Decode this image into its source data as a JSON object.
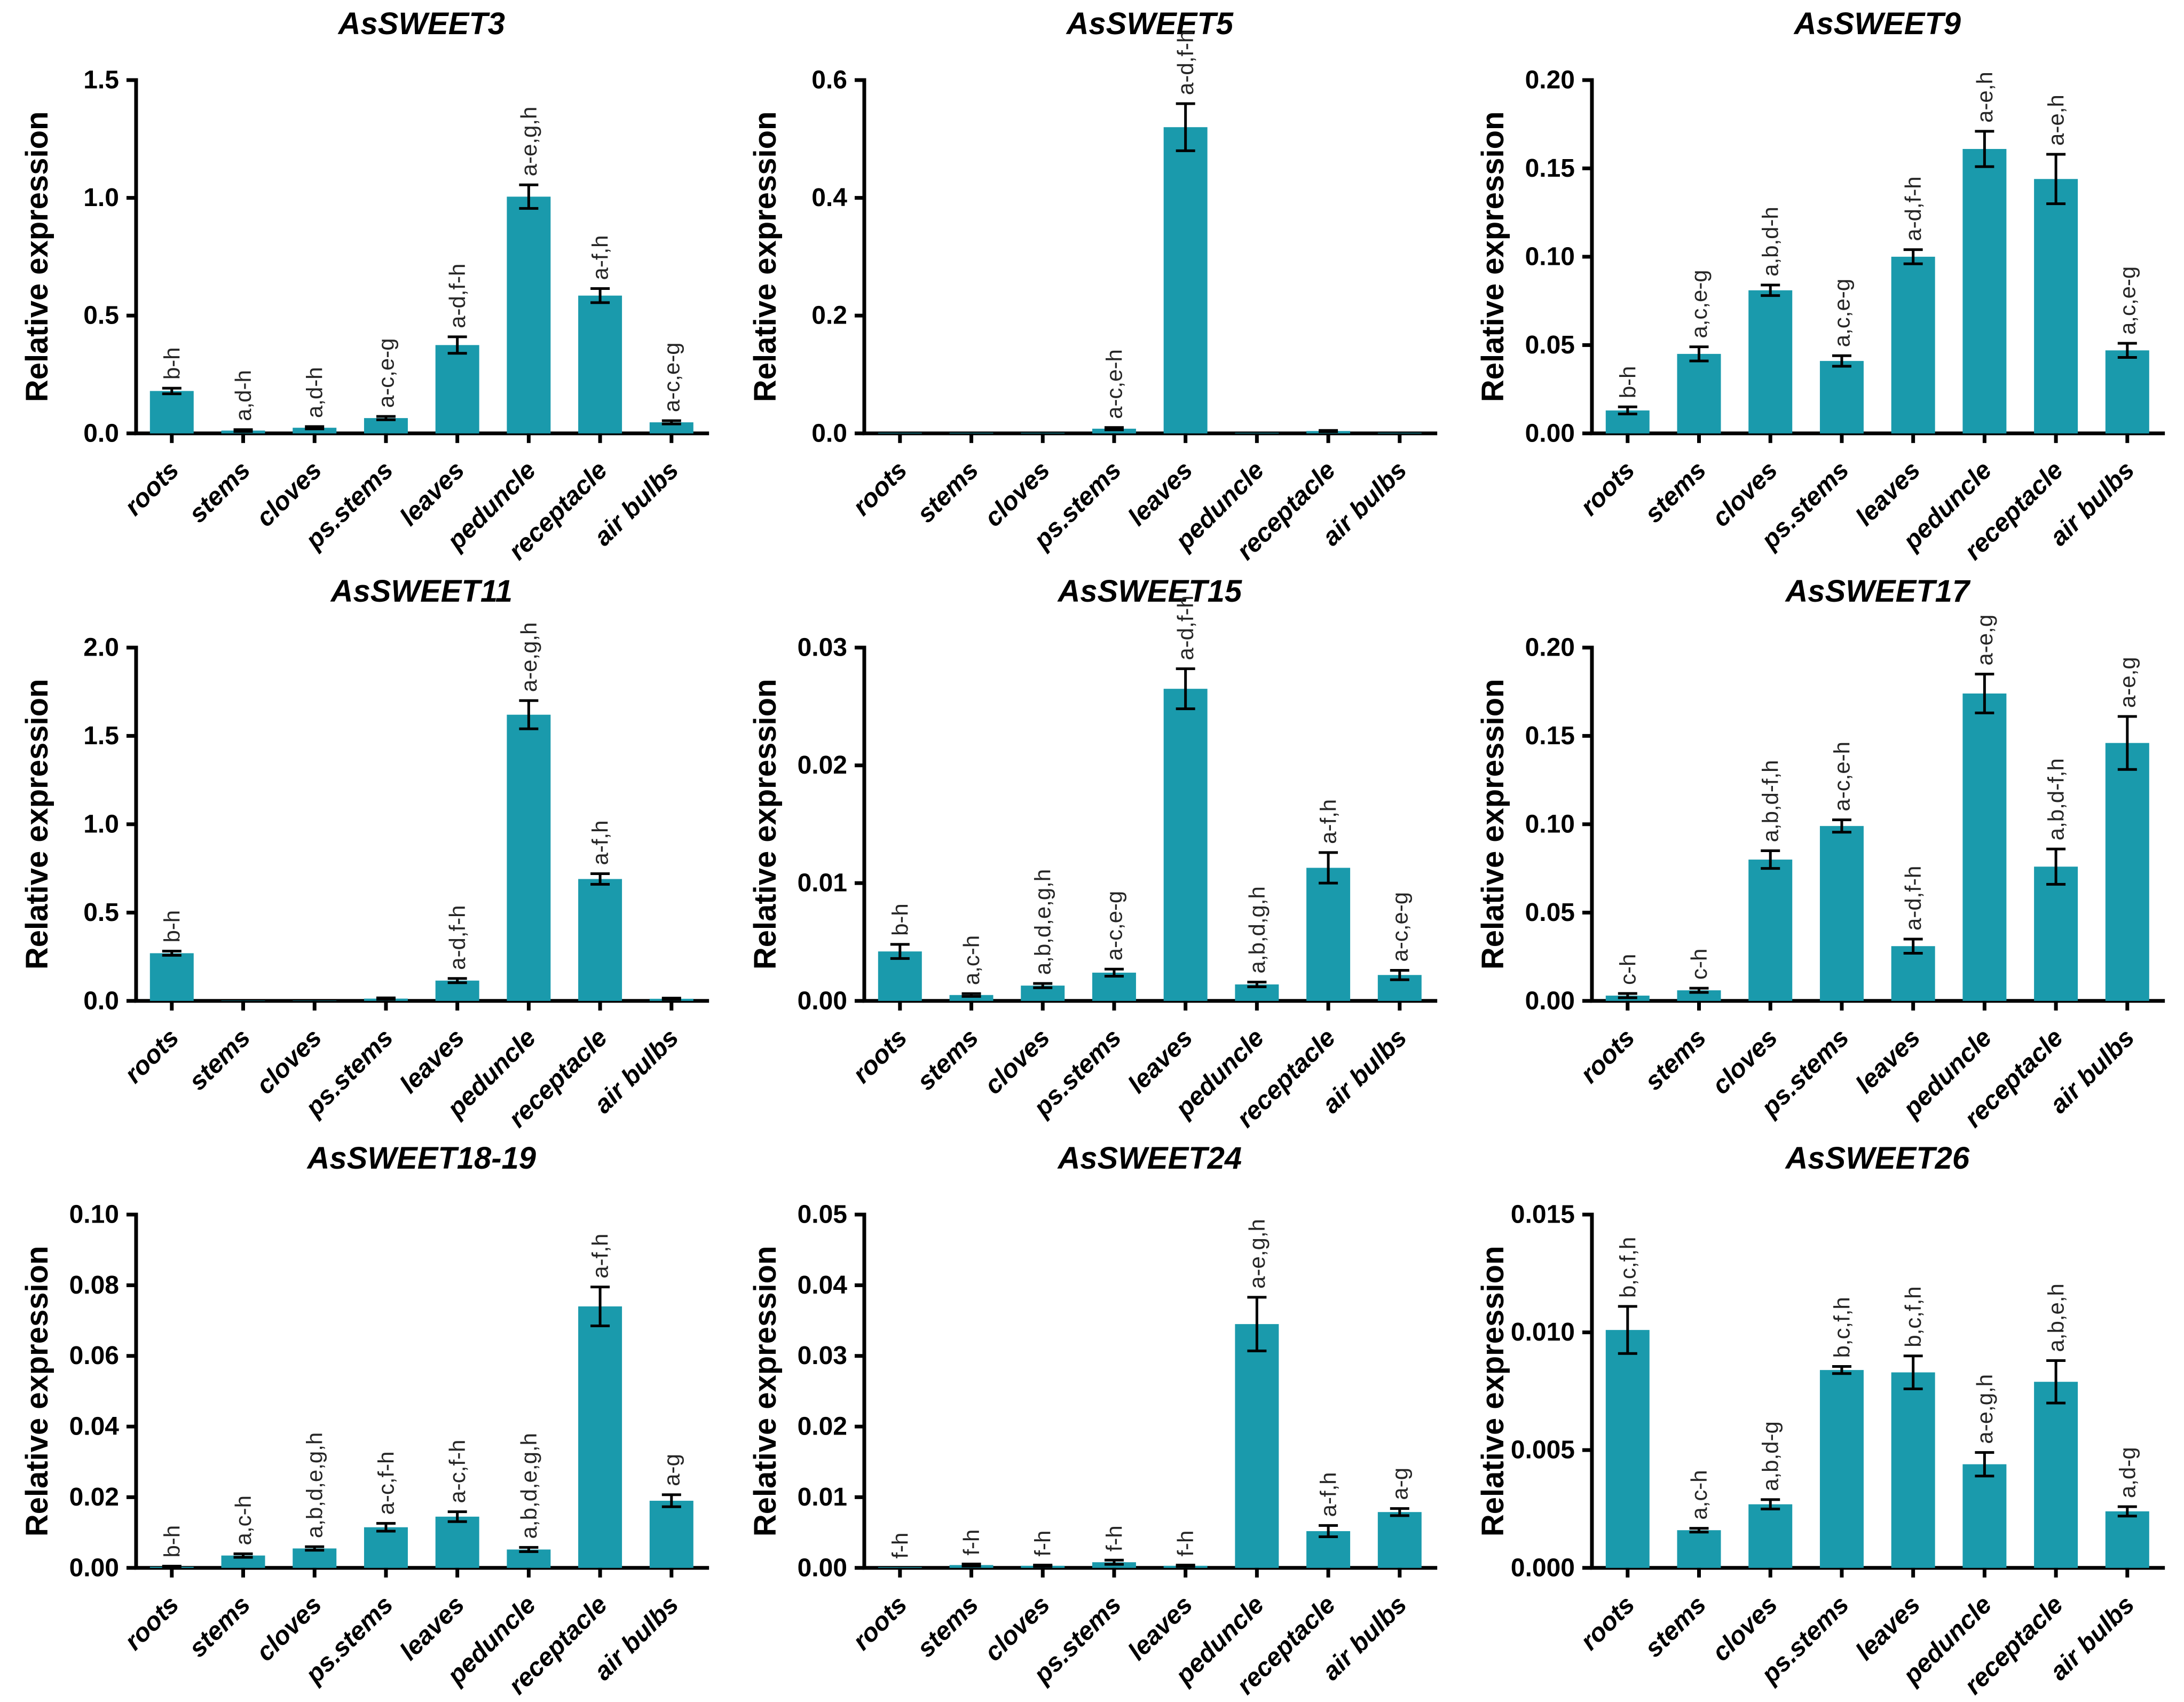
{
  "figure": {
    "bar_color": "#1a9aac",
    "axis_color": "#000000",
    "title_color": "#000000",
    "tick_label_color": "#000000",
    "sig_label_color": "#262626",
    "ylabel": "Relative expression"
  },
  "chart_data": [
    {
      "type": "bar",
      "title": "AsSWEET3",
      "ylabel": "Relative expression",
      "categories": [
        "roots",
        "stems",
        "cloves",
        "ps.stems",
        "leaves",
        "peduncle",
        "receptacle",
        "air bulbs"
      ],
      "values": [
        0.18,
        0.012,
        0.024,
        0.065,
        0.375,
        1.005,
        0.585,
        0.047
      ],
      "errors": [
        0.012,
        0.004,
        0.005,
        0.007,
        0.035,
        0.05,
        0.03,
        0.007
      ],
      "sig_labels": [
        "b-h",
        "a,d-h",
        "a,d-h",
        "a-c,e-g",
        "a-d,f-h",
        "a-e,g,h",
        "a-f,h",
        "a-c,e-g"
      ],
      "ylim": [
        0,
        1.5
      ],
      "yticks": [
        0,
        0.5,
        1.0,
        1.5
      ],
      "ytick_labels": [
        "0.0",
        "0.5",
        "1.0",
        "1.5"
      ],
      "grid": false,
      "legend": false
    },
    {
      "type": "bar",
      "title": "AsSWEET5",
      "ylabel": "Relative expression",
      "categories": [
        "roots",
        "stems",
        "cloves",
        "ps.stems",
        "leaves",
        "peduncle",
        "receptacle",
        "air bulbs"
      ],
      "values": [
        0.001,
        0.001,
        0.001,
        0.008,
        0.52,
        0.001,
        0.004,
        0.001
      ],
      "errors": [
        0,
        0,
        0,
        0.002,
        0.04,
        0,
        0.001,
        0
      ],
      "sig_labels": [
        "",
        "",
        "",
        "a-c,e-h",
        "a-d,f-h",
        "",
        "",
        ""
      ],
      "ylim": [
        0,
        0.6
      ],
      "yticks": [
        0,
        0.2,
        0.4,
        0.6
      ],
      "ytick_labels": [
        "0.0",
        "0.2",
        "0.4",
        "0.6"
      ],
      "grid": false,
      "legend": false
    },
    {
      "type": "bar",
      "title": "AsSWEET9",
      "ylabel": "Relative expression",
      "categories": [
        "roots",
        "stems",
        "cloves",
        "ps.stems",
        "leaves",
        "peduncle",
        "receptacle",
        "air bulbs"
      ],
      "values": [
        0.013,
        0.045,
        0.081,
        0.041,
        0.1,
        0.161,
        0.144,
        0.047
      ],
      "errors": [
        0.002,
        0.004,
        0.003,
        0.003,
        0.004,
        0.01,
        0.014,
        0.004
      ],
      "sig_labels": [
        "b-h",
        "a,c,e-g",
        "a,b,d-h",
        "a,c,e-g",
        "a-d,f-h",
        "a-e,h",
        "a-e,h",
        "a,c,e-g"
      ],
      "ylim": [
        0,
        0.2
      ],
      "yticks": [
        0,
        0.05,
        0.1,
        0.15,
        0.2
      ],
      "ytick_labels": [
        "0.00",
        "0.05",
        "0.10",
        "0.15",
        "0.20"
      ],
      "grid": false,
      "legend": false
    },
    {
      "type": "bar",
      "title": "AsSWEET11",
      "ylabel": "Relative expression",
      "categories": [
        "roots",
        "stems",
        "cloves",
        "ps.stems",
        "leaves",
        "peduncle",
        "receptacle",
        "air bulbs"
      ],
      "values": [
        0.27,
        0.002,
        0.002,
        0.013,
        0.115,
        1.62,
        0.69,
        0.012
      ],
      "errors": [
        0.012,
        0,
        0,
        0.004,
        0.012,
        0.08,
        0.03,
        0.004
      ],
      "sig_labels": [
        "b-h",
        "",
        "",
        "",
        "a-d,f-h",
        "a-e,g,h",
        "a-f,h",
        ""
      ],
      "ylim": [
        0,
        2.0
      ],
      "yticks": [
        0,
        0.5,
        1.0,
        1.5,
        2.0
      ],
      "ytick_labels": [
        "0.0",
        "0.5",
        "1.0",
        "1.5",
        "2.0"
      ],
      "grid": false,
      "legend": false
    },
    {
      "type": "bar",
      "title": "AsSWEET15",
      "ylabel": "Relative expression",
      "categories": [
        "roots",
        "stems",
        "cloves",
        "ps.stems",
        "leaves",
        "peduncle",
        "receptacle",
        "air bulbs"
      ],
      "values": [
        0.0042,
        0.0005,
        0.0013,
        0.0024,
        0.0265,
        0.0014,
        0.0113,
        0.0022
      ],
      "errors": [
        0.0006,
        0.00012,
        0.00018,
        0.0003,
        0.0017,
        0.0002,
        0.0013,
        0.0004
      ],
      "sig_labels": [
        "b-h",
        "a,c-h",
        "a,b,d,e,g,h",
        "a-c,e-g",
        "a-d,f-h",
        "a,b,d,g,h",
        "a-f,h",
        "a-c,e-g"
      ],
      "ylim": [
        0,
        0.03
      ],
      "yticks": [
        0,
        0.01,
        0.02,
        0.03
      ],
      "ytick_labels": [
        "0.00",
        "0.01",
        "0.02",
        "0.03"
      ],
      "grid": false,
      "legend": false
    },
    {
      "type": "bar",
      "title": "AsSWEET17",
      "ylabel": "Relative expression",
      "categories": [
        "roots",
        "stems",
        "cloves",
        "ps.stems",
        "leaves",
        "peduncle",
        "receptacle",
        "air bulbs"
      ],
      "values": [
        0.003,
        0.006,
        0.08,
        0.099,
        0.031,
        0.174,
        0.076,
        0.146
      ],
      "errors": [
        0.0012,
        0.0012,
        0.005,
        0.0035,
        0.004,
        0.011,
        0.01,
        0.015
      ],
      "sig_labels": [
        "c-h",
        "c-h",
        "a,b,d-f,h",
        "a-c,e-h",
        "a-d,f-h",
        "a-e,g",
        "a,b,d-f,h",
        "a-e,g"
      ],
      "ylim": [
        0,
        0.2
      ],
      "yticks": [
        0,
        0.05,
        0.1,
        0.15,
        0.2
      ],
      "ytick_labels": [
        "0.00",
        "0.05",
        "0.10",
        "0.15",
        "0.20"
      ],
      "grid": false,
      "legend": false
    },
    {
      "type": "bar",
      "title": "AsSWEET18-19",
      "ylabel": "Relative expression",
      "categories": [
        "roots",
        "stems",
        "cloves",
        "ps.stems",
        "leaves",
        "peduncle",
        "receptacle",
        "air bulbs"
      ],
      "values": [
        0.0003,
        0.0035,
        0.0055,
        0.0115,
        0.0145,
        0.0052,
        0.074,
        0.019
      ],
      "errors": [
        0.0002,
        0.0005,
        0.0005,
        0.0011,
        0.0014,
        0.0006,
        0.0055,
        0.0017
      ],
      "sig_labels": [
        "b-h",
        "a,c-h",
        "a,b,d,e,g,h",
        "a-c,f-h",
        "a-c,f-h",
        "a,b,d,e,g,h",
        "a-f,h",
        "a-g"
      ],
      "ylim": [
        0,
        0.1
      ],
      "yticks": [
        0,
        0.02,
        0.04,
        0.06,
        0.08,
        0.1
      ],
      "ytick_labels": [
        "0.00",
        "0.02",
        "0.04",
        "0.06",
        "0.08",
        "0.10"
      ],
      "grid": false,
      "legend": false
    },
    {
      "type": "bar",
      "title": "AsSWEET24",
      "ylabel": "Relative expression",
      "categories": [
        "roots",
        "stems",
        "cloves",
        "ps.stems",
        "leaves",
        "peduncle",
        "receptacle",
        "air bulbs"
      ],
      "values": [
        0.0001,
        0.0004,
        0.0003,
        0.0008,
        0.0003,
        0.0345,
        0.0052,
        0.0079
      ],
      "errors": [
        0,
        0.00015,
        0.0001,
        0.0003,
        0.0001,
        0.0038,
        0.0008,
        0.0005
      ],
      "sig_labels": [
        "f-h",
        "f-h",
        "f-h",
        "f-h",
        "f-h",
        "a-e,g,h",
        "a-f,h",
        "a-g"
      ],
      "ylim": [
        0,
        0.05
      ],
      "yticks": [
        0,
        0.01,
        0.02,
        0.03,
        0.04,
        0.05
      ],
      "ytick_labels": [
        "0.00",
        "0.01",
        "0.02",
        "0.03",
        "0.04",
        "0.05"
      ],
      "grid": false,
      "legend": false
    },
    {
      "type": "bar",
      "title": "AsSWEET26",
      "ylabel": "Relative expression",
      "categories": [
        "roots",
        "stems",
        "cloves",
        "ps.stems",
        "leaves",
        "peduncle",
        "receptacle",
        "air bulbs"
      ],
      "values": [
        0.0101,
        0.0016,
        0.0027,
        0.0084,
        0.0083,
        0.0044,
        0.0079,
        0.0024
      ],
      "errors": [
        0.001,
        8e-05,
        0.0002,
        0.00015,
        0.0007,
        0.0005,
        0.0009,
        0.0002
      ],
      "sig_labels": [
        "b,c,f,h",
        "a,c-h",
        "a,b,d-g",
        "b,c,f,h",
        "b,c,f,h",
        "a-e,g,h",
        "a,b,e,h",
        "a,d-g"
      ],
      "ylim": [
        0,
        0.015
      ],
      "yticks": [
        0,
        0.005,
        0.01,
        0.015
      ],
      "ytick_labels": [
        "0.000",
        "0.005",
        "0.010",
        "0.015"
      ],
      "grid": false,
      "legend": false
    }
  ]
}
